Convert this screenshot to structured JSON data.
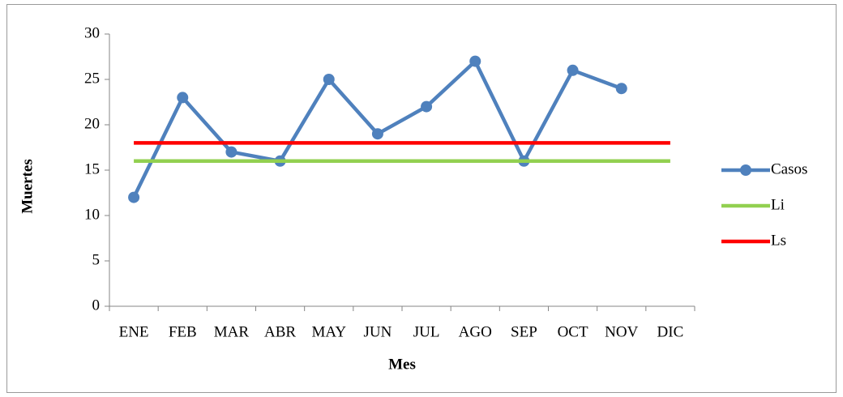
{
  "chart_data": {
    "type": "line",
    "x_label": "Mes",
    "y_label": "Muertes",
    "categories": [
      "ENE",
      "FEB",
      "MAR",
      "ABR",
      "MAY",
      "JUN",
      "JUL",
      "AGO",
      "SEP",
      "OCT",
      "NOV",
      "DIC"
    ],
    "series": [
      {
        "name": "Casos",
        "color": "#4f81bd",
        "markers": true,
        "values": [
          12,
          23,
          17,
          16,
          25,
          19,
          22,
          27,
          16,
          26,
          24,
          null
        ]
      },
      {
        "name": "Li",
        "color": "#92d050",
        "markers": false,
        "values": [
          16,
          16,
          16,
          16,
          16,
          16,
          16,
          16,
          16,
          16,
          16,
          16
        ]
      },
      {
        "name": "Ls",
        "color": "#ff0000",
        "markers": false,
        "values": [
          18,
          18,
          18,
          18,
          18,
          18,
          18,
          18,
          18,
          18,
          18,
          18
        ]
      }
    ],
    "ylim": [
      0,
      30
    ],
    "yticks": [
      0,
      5,
      10,
      15,
      20,
      25,
      30
    ],
    "grid": false,
    "legend": "right"
  }
}
